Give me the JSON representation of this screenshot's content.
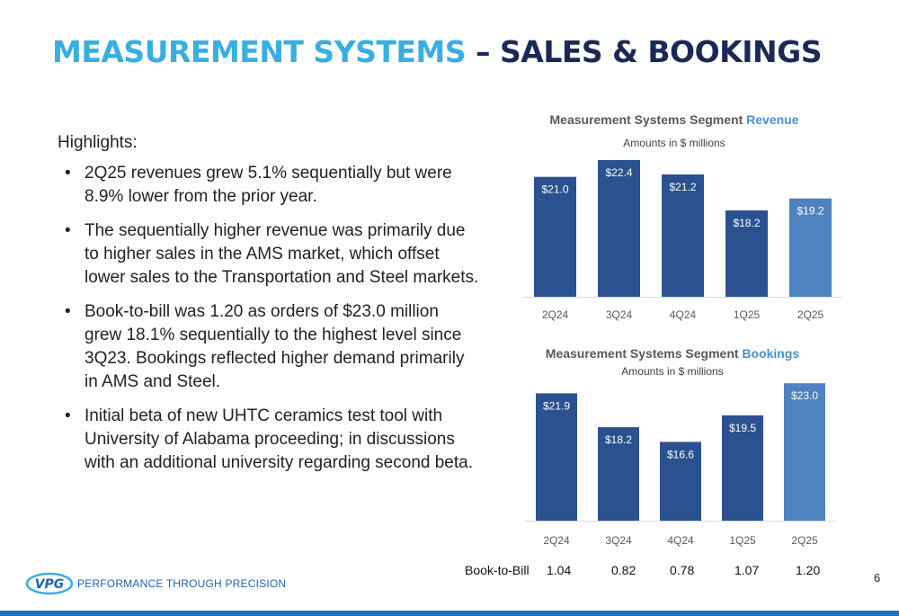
{
  "title": {
    "part1": "MEASUREMENT SYSTEMS",
    "part2": " – SALES & BOOKINGS"
  },
  "highlights": {
    "heading": "Highlights:",
    "bullet": "•",
    "items": [
      "2Q25 revenues grew 5.1% sequentially but were 8.9% lower from the prior year.",
      "The sequentially higher revenue was primarily due to higher sales in the AMS market, which offset lower sales to the Transportation and Steel markets.",
      "Book-to-bill was 1.20 as orders of $23.0 million grew 18.1% sequentially to the highest level since 3Q23. Bookings reflected higher demand primarily in AMS and Steel.",
      "Initial beta of new UHTC ceramics test tool with University of Alabama proceeding; in discussions with an additional university regarding second beta."
    ]
  },
  "chart_data": [
    {
      "type": "bar",
      "title": "Measurement Systems Segment Revenue",
      "title_plain": "Measurement Systems Segment ",
      "title_accent": "Revenue",
      "subtitle": "Amounts in $ millions",
      "categories": [
        "2Q24",
        "3Q24",
        "4Q24",
        "1Q25",
        "2Q25"
      ],
      "values": [
        21.0,
        22.4,
        21.2,
        18.2,
        19.2
      ],
      "data_labels": [
        "$21.0",
        "$22.4",
        "$21.2",
        "$18.2",
        "$19.2"
      ],
      "ylim": [
        11,
        23
      ],
      "grid": false,
      "colors": [
        "#2b5190",
        "#2b5190",
        "#2b5190",
        "#2b5190",
        "#4f82c0"
      ]
    },
    {
      "type": "bar",
      "title": "Measurement Systems Segment Bookings",
      "title_plain": "Measurement Systems Segment ",
      "title_accent": "Bookings",
      "subtitle": "Amounts in $ millions",
      "categories": [
        "2Q24",
        "3Q24",
        "4Q24",
        "1Q25",
        "2Q25"
      ],
      "values": [
        21.9,
        18.2,
        16.6,
        19.5,
        23.0
      ],
      "data_labels": [
        "$21.9",
        "$18.2",
        "$16.6",
        "$19.5",
        "$23.0"
      ],
      "ylim": [
        8,
        24
      ],
      "grid": false,
      "colors": [
        "#2b5190",
        "#2b5190",
        "#2b5190",
        "#2b5190",
        "#4f82c0"
      ]
    }
  ],
  "book_to_bill": {
    "label": "Book-to-Bill",
    "values": [
      "1.04",
      "0.82",
      "0.78",
      "1.07",
      "1.20"
    ]
  },
  "footer": {
    "logo_text": "VPG",
    "tagline": "PERFORMANCE THROUGH PRECISION",
    "page_number": "6"
  },
  "colors": {
    "title_accent": "#3aaee0",
    "title_dark": "#1c2957",
    "bar": "#2b5190",
    "bar_latest": "#4f82c0",
    "footer_bar": "#1f6fbf"
  }
}
